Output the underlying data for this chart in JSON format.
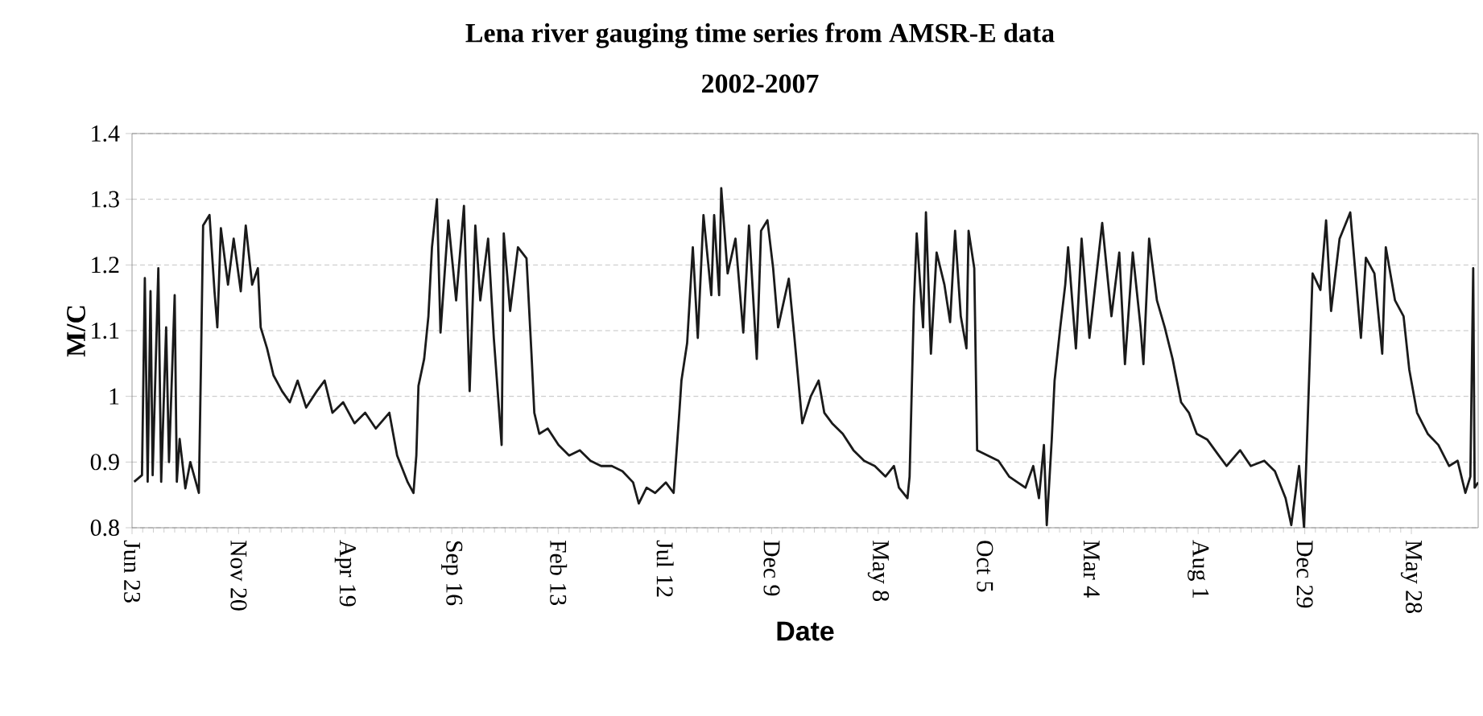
{
  "chart_data": {
    "type": "line",
    "title": "Lena river gauging time series from AMSR-E data",
    "subtitle": "2002-2007",
    "xlabel": "Date",
    "ylabel": "M/C",
    "xlim": [
      "2002-06-23",
      "2007-08-30"
    ],
    "ylim": [
      0.8,
      1.4
    ],
    "xticks": [
      {
        "value": "2002-06-23",
        "label": "Jun 23"
      },
      {
        "value": "2002-11-20",
        "label": "Nov 20"
      },
      {
        "value": "2003-04-19",
        "label": "Apr 19"
      },
      {
        "value": "2003-09-16",
        "label": "Sep 16"
      },
      {
        "value": "2004-02-13",
        "label": "Feb 13"
      },
      {
        "value": "2004-07-12",
        "label": "Jul 12"
      },
      {
        "value": "2004-12-09",
        "label": "Dec 9"
      },
      {
        "value": "2005-05-08",
        "label": "May 8"
      },
      {
        "value": "2005-10-05",
        "label": "Oct 5"
      },
      {
        "value": "2006-03-04",
        "label": "Mar 4"
      },
      {
        "value": "2006-08-01",
        "label": "Aug 1"
      },
      {
        "value": "2006-12-29",
        "label": "Dec 29"
      },
      {
        "value": "2007-05-28",
        "label": "May 28"
      }
    ],
    "yticks": [
      0.8,
      0.9,
      1,
      1.1,
      1.2,
      1.3,
      1.4
    ],
    "grid": "y",
    "series": [
      {
        "color": "#1a1a1a",
        "x": [
          "2002-06-26",
          "2002-07-07",
          "2002-07-11",
          "2002-07-15",
          "2002-07-19",
          "2002-07-22",
          "2002-07-30",
          "2002-08-03",
          "2002-08-10",
          "2002-08-14",
          "2002-08-22",
          "2002-08-25",
          "2002-08-29",
          "2002-09-06",
          "2002-09-13",
          "2002-09-25",
          "2002-09-28",
          "2002-10-01",
          "2002-10-10",
          "2002-10-17",
          "2002-10-21",
          "2002-10-26",
          "2002-11-05",
          "2002-11-13",
          "2002-11-23",
          "2002-11-30",
          "2002-12-09",
          "2002-12-17",
          "2002-12-21",
          "2002-12-30",
          "2003-01-08",
          "2003-01-20",
          "2003-01-31",
          "2003-02-11",
          "2003-02-23",
          "2003-03-10",
          "2003-03-21",
          "2003-04-01",
          "2003-04-16",
          "2003-05-02",
          "2003-05-17",
          "2003-06-01",
          "2003-06-20",
          "2003-07-01",
          "2003-07-16",
          "2003-07-24",
          "2003-07-28",
          "2003-07-31",
          "2003-08-08",
          "2003-08-14",
          "2003-08-19",
          "2003-08-26",
          "2003-08-31",
          "2003-09-11",
          "2003-09-22",
          "2003-10-03",
          "2003-10-11",
          "2003-10-19",
          "2003-10-26",
          "2003-11-06",
          "2003-11-14",
          "2003-11-25",
          "2003-11-28",
          "2003-12-07",
          "2003-12-18",
          "2003-12-30",
          "2004-01-06",
          "2004-01-10",
          "2004-01-17",
          "2004-01-29",
          "2004-02-13",
          "2004-02-28",
          "2004-03-14",
          "2004-03-29",
          "2004-04-13",
          "2004-04-28",
          "2004-05-13",
          "2004-05-28",
          "2004-06-05",
          "2004-06-16",
          "2004-06-28",
          "2004-07-13",
          "2004-07-24",
          "2004-08-01",
          "2004-08-04",
          "2004-08-12",
          "2004-08-20",
          "2004-08-27",
          "2004-09-04",
          "2004-09-15",
          "2004-09-19",
          "2004-09-26",
          "2004-09-29",
          "2004-10-08",
          "2004-10-19",
          "2004-10-30",
          "2004-11-07",
          "2004-11-18",
          "2004-11-24",
          "2004-12-03",
          "2004-12-11",
          "2004-12-18",
          "2005-01-02",
          "2005-01-10",
          "2005-01-21",
          "2005-02-02",
          "2005-02-13",
          "2005-02-21",
          "2005-03-04",
          "2005-03-19",
          "2005-04-03",
          "2005-04-18",
          "2005-05-03",
          "2005-05-18",
          "2005-05-30",
          "2005-06-06",
          "2005-06-18",
          "2005-06-21",
          "2005-06-27",
          "2005-07-01",
          "2005-07-10",
          "2005-07-14",
          "2005-07-21",
          "2005-07-29",
          "2005-08-09",
          "2005-08-17",
          "2005-08-24",
          "2005-09-01",
          "2005-09-09",
          "2005-09-12",
          "2005-09-20",
          "2005-09-24",
          "2005-10-09",
          "2005-10-24",
          "2005-11-08",
          "2005-11-20",
          "2005-12-01",
          "2005-12-12",
          "2005-12-20",
          "2005-12-27",
          "2005-12-31",
          "2006-01-07",
          "2006-01-11",
          "2006-01-19",
          "2006-01-26",
          "2006-01-30",
          "2006-02-10",
          "2006-02-18",
          "2006-03-01",
          "2006-03-19",
          "2006-04-01",
          "2006-04-12",
          "2006-04-20",
          "2006-05-01",
          "2006-05-12",
          "2006-05-16",
          "2006-05-24",
          "2006-06-04",
          "2006-06-15",
          "2006-06-26",
          "2006-07-08",
          "2006-07-19",
          "2006-07-30",
          "2006-08-14",
          "2006-08-30",
          "2006-09-10",
          "2006-09-29",
          "2006-10-14",
          "2006-11-02",
          "2006-11-17",
          "2006-12-02",
          "2006-12-10",
          "2006-12-21",
          "2006-12-28",
          "2007-01-04",
          "2007-01-09",
          "2007-01-20",
          "2007-01-28",
          "2007-02-04",
          "2007-02-16",
          "2007-03-03",
          "2007-03-18",
          "2007-03-25",
          "2007-04-06",
          "2007-04-17",
          "2007-04-22",
          "2007-05-05",
          "2007-05-17",
          "2007-05-25",
          "2007-06-05",
          "2007-06-20",
          "2007-07-05",
          "2007-07-20",
          "2007-08-01",
          "2007-08-12",
          "2007-08-19",
          "2007-08-23",
          "2007-08-25",
          "2007-08-30"
        ],
        "values": [
          0.87,
          0.88,
          1.18,
          0.87,
          1.16,
          0.88,
          1.195,
          0.87,
          1.105,
          0.9,
          1.154,
          0.87,
          0.935,
          0.86,
          0.9,
          0.853,
          1.05,
          1.26,
          1.276,
          1.16,
          1.105,
          1.256,
          1.17,
          1.24,
          1.16,
          1.26,
          1.17,
          1.195,
          1.105,
          1.073,
          1.032,
          1.008,
          0.991,
          1.024,
          0.983,
          1.008,
          1.024,
          0.975,
          0.991,
          0.959,
          0.975,
          0.951,
          0.975,
          0.91,
          0.869,
          0.853,
          0.91,
          1.016,
          1.057,
          1.122,
          1.227,
          1.3,
          1.097,
          1.268,
          1.146,
          1.29,
          1.008,
          1.26,
          1.146,
          1.24,
          1.089,
          0.926,
          1.248,
          1.13,
          1.227,
          1.21,
          1.065,
          0.975,
          0.943,
          0.951,
          0.926,
          0.91,
          0.918,
          0.902,
          0.894,
          0.894,
          0.886,
          0.869,
          0.837,
          0.861,
          0.853,
          0.869,
          0.853,
          0.975,
          1.024,
          1.081,
          1.227,
          1.089,
          1.276,
          1.154,
          1.276,
          1.154,
          1.317,
          1.187,
          1.24,
          1.097,
          1.26,
          1.057,
          1.252,
          1.268,
          1.195,
          1.105,
          1.179,
          1.089,
          0.959,
          1.0,
          1.024,
          0.975,
          0.959,
          0.943,
          0.918,
          0.902,
          0.894,
          0.878,
          0.894,
          0.861,
          0.845,
          0.878,
          1.138,
          1.248,
          1.105,
          1.28,
          1.065,
          1.219,
          1.17,
          1.113,
          1.252,
          1.122,
          1.073,
          1.252,
          1.195,
          0.918,
          0.91,
          0.902,
          0.878,
          0.869,
          0.861,
          0.894,
          0.845,
          0.926,
          0.804,
          0.934,
          1.024,
          1.105,
          1.17,
          1.227,
          1.073,
          1.24,
          1.089,
          1.264,
          1.122,
          1.219,
          1.049,
          1.219,
          1.105,
          1.049,
          1.24,
          1.146,
          1.105,
          1.057,
          0.991,
          0.975,
          0.943,
          0.934,
          0.91,
          0.894,
          0.918,
          0.894,
          0.902,
          0.886,
          0.845,
          0.804,
          0.894,
          0.8,
          1.024,
          1.187,
          1.162,
          1.268,
          1.13,
          1.24,
          1.28,
          1.089,
          1.211,
          1.187,
          1.065,
          1.227,
          1.146,
          1.122,
          1.041,
          0.975,
          0.943,
          0.926,
          0.894,
          0.902,
          0.853,
          0.878,
          1.195,
          0.861,
          0.869
        ]
      }
    ]
  }
}
